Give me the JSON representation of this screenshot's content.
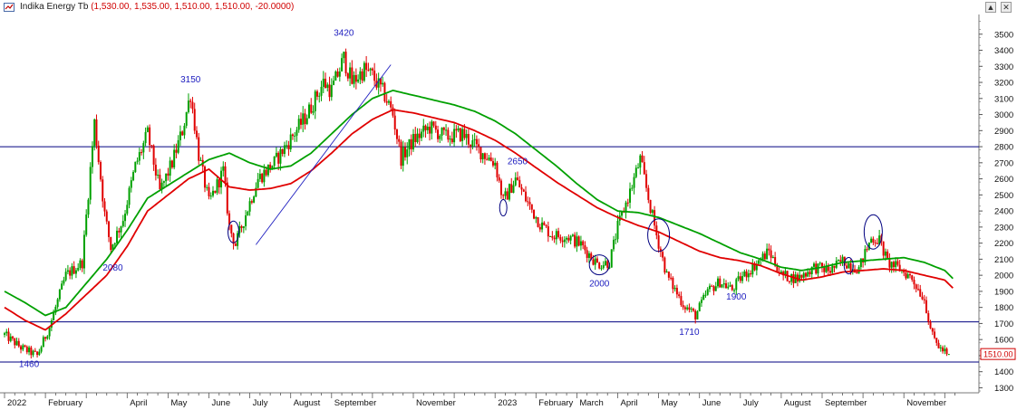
{
  "window": {
    "title": "Indika Energy Tb",
    "values": "(1,530.00, 1,535.00, 1,510.00, 1,510.00, -20.0000)"
  },
  "chart_data": {
    "type": "candlestick",
    "title": "Indika Energy Tb",
    "ohlc_readout": {
      "open": 1530,
      "high": 1535,
      "low": 1510,
      "close": 1510,
      "change": -20
    },
    "last_price_label": "1510.00",
    "y_ticks": [
      1300,
      1400,
      1500,
      1600,
      1700,
      1800,
      1900,
      2000,
      2100,
      2200,
      2300,
      2400,
      2500,
      2600,
      2700,
      2800,
      2900,
      3000,
      3100,
      3200,
      3300,
      3400,
      3500
    ],
    "ylim": [
      1280,
      3600
    ],
    "x_labels": [
      "2022",
      "February",
      "April",
      "May",
      "June",
      "July",
      "August",
      "September",
      "November",
      "2023",
      "February",
      "March",
      "April",
      "May",
      "June",
      "July",
      "August",
      "September",
      "November"
    ],
    "x_label_months": [
      0,
      1,
      3,
      4,
      5,
      6,
      7,
      8,
      10,
      12,
      13,
      14,
      15,
      16,
      17,
      18,
      19,
      20,
      22
    ],
    "price_anchors": [
      [
        0,
        1630
      ],
      [
        0.4,
        1550
      ],
      [
        0.8,
        1500
      ],
      [
        1.1,
        1680
      ],
      [
        1.5,
        2000
      ],
      [
        1.9,
        2080
      ],
      [
        2.2,
        2950
      ],
      [
        2.45,
        2380
      ],
      [
        2.6,
        2170
      ],
      [
        2.9,
        2350
      ],
      [
        3.2,
        2680
      ],
      [
        3.5,
        2880
      ],
      [
        3.8,
        2520
      ],
      [
        4.1,
        2700
      ],
      [
        4.35,
        2900
      ],
      [
        4.55,
        3130
      ],
      [
        4.75,
        2750
      ],
      [
        5.0,
        2450
      ],
      [
        5.35,
        2650
      ],
      [
        5.5,
        2300
      ],
      [
        5.65,
        2190
      ],
      [
        5.9,
        2380
      ],
      [
        6.2,
        2600
      ],
      [
        6.6,
        2700
      ],
      [
        7.0,
        2850
      ],
      [
        7.4,
        3000
      ],
      [
        7.8,
        3200
      ],
      [
        8.0,
        3150
      ],
      [
        8.3,
        3350
      ],
      [
        8.5,
        3200
      ],
      [
        8.8,
        3280
      ],
      [
        9.0,
        3240
      ],
      [
        9.3,
        3120
      ],
      [
        9.5,
        3000
      ],
      [
        9.7,
        2730
      ],
      [
        10.0,
        2840
      ],
      [
        10.4,
        2920
      ],
      [
        10.8,
        2860
      ],
      [
        11.2,
        2880
      ],
      [
        11.6,
        2780
      ],
      [
        12.0,
        2700
      ],
      [
        12.2,
        2460
      ],
      [
        12.5,
        2600
      ],
      [
        12.8,
        2450
      ],
      [
        13.1,
        2320
      ],
      [
        13.4,
        2250
      ],
      [
        13.8,
        2240
      ],
      [
        14.1,
        2190
      ],
      [
        14.5,
        2070
      ],
      [
        14.8,
        2080
      ],
      [
        15.0,
        2300
      ],
      [
        15.3,
        2520
      ],
      [
        15.55,
        2720
      ],
      [
        15.75,
        2480
      ],
      [
        15.95,
        2250
      ],
      [
        16.2,
        2000
      ],
      [
        16.6,
        1820
      ],
      [
        16.9,
        1750
      ],
      [
        17.2,
        1900
      ],
      [
        17.5,
        1960
      ],
      [
        17.8,
        1910
      ],
      [
        18.0,
        1980
      ],
      [
        18.3,
        2050
      ],
      [
        18.7,
        2150
      ],
      [
        19.0,
        2000
      ],
      [
        19.4,
        1980
      ],
      [
        19.8,
        2050
      ],
      [
        20.2,
        2030
      ],
      [
        20.5,
        2090
      ],
      [
        20.9,
        2040
      ],
      [
        21.2,
        2230
      ],
      [
        21.4,
        2220
      ],
      [
        21.6,
        2080
      ],
      [
        21.9,
        2040
      ],
      [
        22.2,
        1980
      ],
      [
        22.5,
        1850
      ],
      [
        22.7,
        1620
      ],
      [
        22.9,
        1540
      ],
      [
        23.1,
        1510
      ]
    ],
    "ma_short_anchors": [
      [
        0,
        1800
      ],
      [
        0.5,
        1720
      ],
      [
        1.0,
        1660
      ],
      [
        1.5,
        1760
      ],
      [
        2.0,
        1880
      ],
      [
        2.5,
        2000
      ],
      [
        3.0,
        2180
      ],
      [
        3.5,
        2400
      ],
      [
        4.0,
        2500
      ],
      [
        4.5,
        2600
      ],
      [
        5.0,
        2660
      ],
      [
        5.5,
        2550
      ],
      [
        6.0,
        2530
      ],
      [
        6.5,
        2540
      ],
      [
        7.0,
        2570
      ],
      [
        7.5,
        2650
      ],
      [
        8.0,
        2760
      ],
      [
        8.5,
        2880
      ],
      [
        9.0,
        2970
      ],
      [
        9.5,
        3030
      ],
      [
        10.0,
        3010
      ],
      [
        10.5,
        2980
      ],
      [
        11.0,
        2950
      ],
      [
        11.5,
        2900
      ],
      [
        12.0,
        2840
      ],
      [
        12.5,
        2760
      ],
      [
        13.0,
        2670
      ],
      [
        13.5,
        2580
      ],
      [
        14.0,
        2500
      ],
      [
        14.5,
        2420
      ],
      [
        15.0,
        2360
      ],
      [
        15.5,
        2310
      ],
      [
        16.0,
        2270
      ],
      [
        16.5,
        2210
      ],
      [
        17.0,
        2150
      ],
      [
        17.5,
        2110
      ],
      [
        18.0,
        2090
      ],
      [
        18.5,
        2060
      ],
      [
        19.0,
        2010
      ],
      [
        19.5,
        1970
      ],
      [
        20.0,
        1990
      ],
      [
        20.5,
        2020
      ],
      [
        21.0,
        2030
      ],
      [
        21.5,
        2040
      ],
      [
        22.0,
        2030
      ],
      [
        22.5,
        2000
      ],
      [
        23.0,
        1970
      ],
      [
        23.2,
        1920
      ]
    ],
    "ma_long_anchors": [
      [
        0,
        1900
      ],
      [
        0.5,
        1830
      ],
      [
        1.0,
        1750
      ],
      [
        1.5,
        1800
      ],
      [
        2.0,
        1950
      ],
      [
        2.5,
        2100
      ],
      [
        3.0,
        2280
      ],
      [
        3.5,
        2480
      ],
      [
        4.0,
        2560
      ],
      [
        4.5,
        2640
      ],
      [
        5.0,
        2720
      ],
      [
        5.5,
        2760
      ],
      [
        6.0,
        2700
      ],
      [
        6.5,
        2660
      ],
      [
        7.0,
        2680
      ],
      [
        7.5,
        2760
      ],
      [
        8.0,
        2880
      ],
      [
        8.5,
        3000
      ],
      [
        9.0,
        3100
      ],
      [
        9.5,
        3150
      ],
      [
        10.0,
        3120
      ],
      [
        10.5,
        3090
      ],
      [
        11.0,
        3060
      ],
      [
        11.5,
        3020
      ],
      [
        12.0,
        2960
      ],
      [
        12.5,
        2880
      ],
      [
        13.0,
        2780
      ],
      [
        13.5,
        2680
      ],
      [
        14.0,
        2570
      ],
      [
        14.5,
        2470
      ],
      [
        15.0,
        2400
      ],
      [
        15.5,
        2390
      ],
      [
        16.0,
        2360
      ],
      [
        16.5,
        2310
      ],
      [
        17.0,
        2260
      ],
      [
        17.5,
        2200
      ],
      [
        18.0,
        2140
      ],
      [
        18.5,
        2100
      ],
      [
        19.0,
        2050
      ],
      [
        19.5,
        2030
      ],
      [
        20.0,
        2050
      ],
      [
        20.5,
        2080
      ],
      [
        21.0,
        2090
      ],
      [
        21.5,
        2100
      ],
      [
        22.0,
        2110
      ],
      [
        22.5,
        2080
      ],
      [
        23.0,
        2030
      ],
      [
        23.2,
        1980
      ]
    ],
    "horizontal_lines": [
      2800,
      1710,
      1460
    ],
    "trendline": {
      "from": [
        6.15,
        2190
      ],
      "to": [
        9.45,
        3310
      ]
    },
    "annotations": [
      {
        "text": "3420",
        "x": 8.3,
        "y": 3490
      },
      {
        "text": "3150",
        "x": 4.55,
        "y": 3200
      },
      {
        "text": "2080",
        "x": 2.65,
        "y": 2030
      },
      {
        "text": "1460",
        "x": 0.6,
        "y": 1430
      },
      {
        "text": "2650",
        "x": 12.55,
        "y": 2690
      },
      {
        "text": "2000",
        "x": 14.55,
        "y": 1930
      },
      {
        "text": "1710",
        "x": 16.75,
        "y": 1630
      },
      {
        "text": "1900",
        "x": 17.9,
        "y": 1850
      }
    ],
    "circles": [
      {
        "x": 12.2,
        "y": 2420,
        "rx": 4,
        "ry": 9
      },
      {
        "x": 5.6,
        "y": 2270,
        "rx": 6,
        "ry": 12
      },
      {
        "x": 14.55,
        "y": 2065,
        "rx": 11,
        "ry": 11
      },
      {
        "x": 16.0,
        "y": 2250,
        "rx": 12,
        "ry": 18
      },
      {
        "x": 20.65,
        "y": 2060,
        "rx": 5,
        "ry": 9
      },
      {
        "x": 21.25,
        "y": 2270,
        "rx": 10,
        "ry": 19
      }
    ],
    "colors": {
      "up": "#00a000",
      "down": "#e00000",
      "ma_short": "#e00000",
      "ma_long": "#00a000",
      "hline": "#000080",
      "annotation": "#2020c0",
      "trendline": "#2020c0"
    }
  }
}
